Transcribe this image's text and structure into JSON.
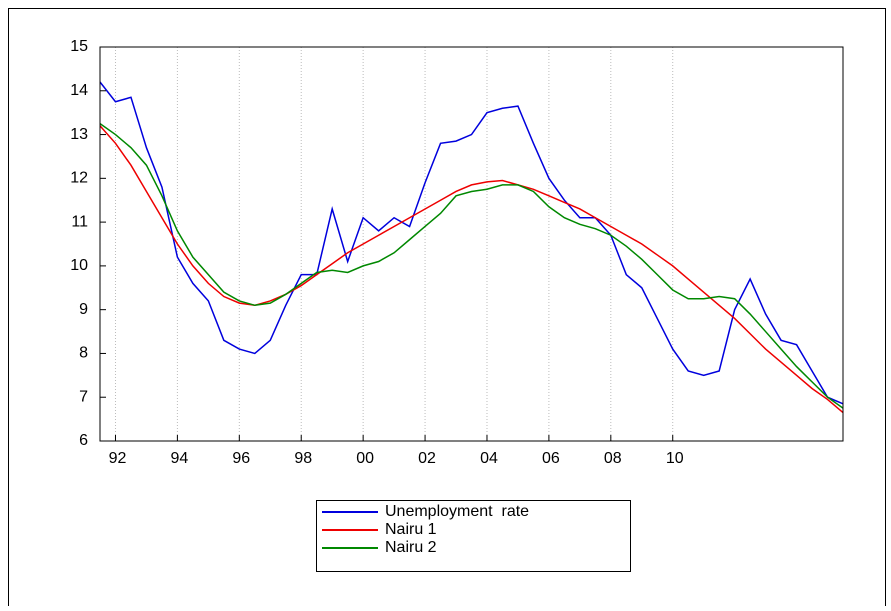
{
  "chart_data": {
    "type": "line",
    "x": [
      1991.5,
      1992,
      1992.5,
      1993,
      1993.5,
      1994,
      1994.5,
      1995,
      1995.5,
      1996,
      1996.5,
      1997,
      1997.5,
      1998,
      1998.5,
      1999,
      1999.5,
      2000,
      2000.5,
      2001,
      2001.5,
      2002,
      2002.5,
      2003,
      2003.5,
      2004,
      2004.5,
      2005,
      2005.5,
      2006,
      2006.5,
      2007,
      2007.5,
      2008,
      2008.5,
      2009,
      2009.5,
      2010,
      2010.5,
      2011,
      2011.5,
      2012,
      2012.5,
      2013,
      2013.5,
      2014,
      2014.5,
      2015,
      2015.5
    ],
    "series": [
      {
        "name": "Unemployment  rate",
        "color": "#0000dd",
        "values": [
          14.2,
          13.75,
          13.85,
          12.7,
          11.8,
          10.2,
          9.6,
          9.2,
          8.3,
          8.1,
          8.0,
          8.3,
          9.1,
          9.8,
          9.8,
          11.3,
          10.1,
          11.1,
          10.8,
          11.1,
          10.9,
          11.9,
          12.8,
          12.85,
          13.0,
          13.5,
          13.6,
          13.65,
          12.8,
          12.0,
          11.5,
          11.1,
          11.1,
          10.7,
          9.8,
          9.5,
          8.8,
          8.1,
          7.6,
          7.5,
          7.6,
          9.0,
          9.7,
          8.9,
          8.3,
          8.2,
          7.6,
          7.0,
          6.85
        ]
      },
      {
        "name": "Nairu 1",
        "color": "#ee0000",
        "values": [
          13.2,
          12.8,
          12.3,
          11.7,
          11.1,
          10.5,
          10.0,
          9.6,
          9.3,
          9.15,
          9.1,
          9.2,
          9.35,
          9.55,
          9.8,
          10.05,
          10.3,
          10.5,
          10.7,
          10.9,
          11.1,
          11.3,
          11.5,
          11.7,
          11.85,
          11.92,
          11.95,
          11.85,
          11.75,
          11.6,
          11.45,
          11.3,
          11.1,
          10.9,
          10.7,
          10.5,
          10.25,
          10.0,
          9.7,
          9.4,
          9.1,
          8.8,
          8.45,
          8.1,
          7.8,
          7.5,
          7.2,
          6.95,
          6.65
        ]
      },
      {
        "name": "Nairu 2",
        "color": "#008800",
        "values": [
          13.25,
          13.0,
          12.7,
          12.3,
          11.6,
          10.8,
          10.2,
          9.8,
          9.4,
          9.2,
          9.1,
          9.15,
          9.35,
          9.6,
          9.85,
          9.9,
          9.85,
          10.0,
          10.1,
          10.3,
          10.6,
          10.9,
          11.2,
          11.6,
          11.7,
          11.75,
          11.85,
          11.85,
          11.7,
          11.35,
          11.1,
          10.95,
          10.85,
          10.7,
          10.45,
          10.15,
          9.8,
          9.45,
          9.25,
          9.25,
          9.3,
          9.25,
          8.9,
          8.5,
          8.1,
          7.7,
          7.35,
          7.0,
          6.75
        ]
      }
    ],
    "xlim": [
      1991.5,
      2015.5
    ],
    "xticks": [
      {
        "value": 1992,
        "label": "92"
      },
      {
        "value": 1994,
        "label": "94"
      },
      {
        "value": 1996,
        "label": "96"
      },
      {
        "value": 1998,
        "label": "98"
      },
      {
        "value": 2000,
        "label": "00"
      },
      {
        "value": 2002,
        "label": "02"
      },
      {
        "value": 2004,
        "label": "04"
      },
      {
        "value": 2006,
        "label": "06"
      },
      {
        "value": 2008,
        "label": "08"
      },
      {
        "value": 2010,
        "label": "10"
      }
    ],
    "ylim": [
      6,
      15
    ],
    "yticks": [
      6,
      7,
      8,
      9,
      10,
      11,
      12,
      13,
      14,
      15
    ],
    "grid": true,
    "legend": "bottom"
  }
}
